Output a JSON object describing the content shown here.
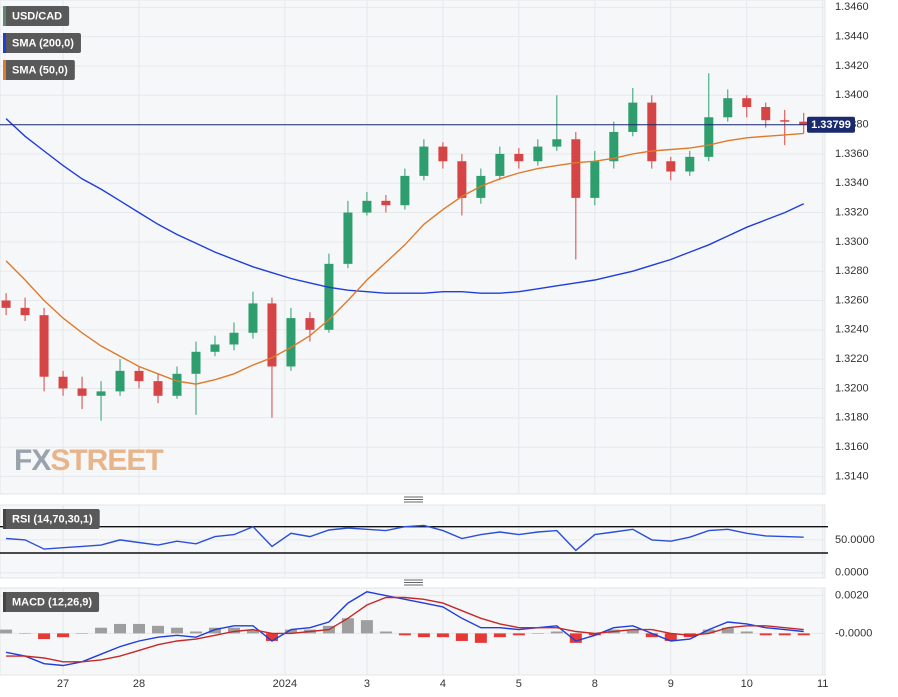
{
  "chart_data": [
    {
      "type": "candlestick",
      "x": [
        0.25,
        0.5,
        0.75,
        1,
        1.25,
        1.5,
        1.75,
        2,
        2.25,
        2.5,
        2.75,
        3,
        3.25,
        3.5,
        3.75,
        4,
        4.25,
        4.5,
        4.75,
        5,
        5.25,
        5.5,
        5.75,
        6,
        6.25,
        6.5,
        6.75,
        7,
        7.25,
        7.5,
        7.75,
        8,
        8.25,
        8.5,
        8.75,
        9,
        9.25,
        9.5,
        9.75,
        10,
        10.25,
        10.5,
        10.75
      ],
      "candles": {
        "name": "USD/CAD",
        "color": "#5f8a6c",
        "up_color": "#2e9e6e",
        "down_color": "#d64545",
        "open": [
          1.326,
          1.3255,
          1.325,
          1.3208,
          1.32,
          1.3195,
          1.3198,
          1.3212,
          1.3205,
          1.3195,
          1.321,
          1.3225,
          1.323,
          1.3238,
          1.3258,
          1.3215,
          1.3248,
          1.324,
          1.3285,
          1.332,
          1.3328,
          1.3325,
          1.3345,
          1.3365,
          1.3355,
          1.333,
          1.3345,
          1.336,
          1.3355,
          1.3365,
          1.337,
          1.333,
          1.3355,
          1.3375,
          1.3395,
          1.3355,
          1.3348,
          1.3358,
          1.3385,
          1.3398,
          1.3392,
          1.3383,
          1.3382
        ],
        "high": [
          1.3265,
          1.3262,
          1.3255,
          1.3212,
          1.3208,
          1.3205,
          1.322,
          1.3215,
          1.321,
          1.3215,
          1.3232,
          1.3236,
          1.3245,
          1.3266,
          1.3262,
          1.3255,
          1.3252,
          1.3292,
          1.3328,
          1.3334,
          1.3332,
          1.335,
          1.337,
          1.3368,
          1.336,
          1.335,
          1.3365,
          1.3364,
          1.337,
          1.34,
          1.3375,
          1.3362,
          1.3382,
          1.3405,
          1.34,
          1.3358,
          1.3362,
          1.3415,
          1.3404,
          1.34,
          1.3395,
          1.339,
          1.3388
        ],
        "low": [
          1.325,
          1.3246,
          1.3198,
          1.3195,
          1.3186,
          1.3178,
          1.3195,
          1.32,
          1.319,
          1.3193,
          1.3182,
          1.3222,
          1.3226,
          1.3234,
          1.318,
          1.3212,
          1.3232,
          1.3238,
          1.3282,
          1.3318,
          1.332,
          1.3322,
          1.3342,
          1.335,
          1.3318,
          1.3326,
          1.3342,
          1.335,
          1.3352,
          1.3362,
          1.3288,
          1.3325,
          1.335,
          1.3372,
          1.335,
          1.3342,
          1.3345,
          1.3355,
          1.3382,
          1.3385,
          1.3378,
          1.3366,
          1.3374
        ],
        "close": [
          1.3255,
          1.325,
          1.3208,
          1.32,
          1.3195,
          1.3198,
          1.3212,
          1.3205,
          1.3195,
          1.321,
          1.3225,
          1.323,
          1.3238,
          1.3258,
          1.3215,
          1.3248,
          1.324,
          1.3285,
          1.332,
          1.3328,
          1.3325,
          1.3345,
          1.3365,
          1.3355,
          1.333,
          1.3345,
          1.336,
          1.3355,
          1.3365,
          1.337,
          1.333,
          1.3355,
          1.3375,
          1.3395,
          1.3355,
          1.3348,
          1.3358,
          1.3385,
          1.3398,
          1.3392,
          1.3383,
          1.3382,
          1.338
        ]
      },
      "series": [
        {
          "name": "SMA (200,0)",
          "color": "#1f3ddb",
          "values": [
            1.3384,
            1.3372,
            1.3362,
            1.3352,
            1.3343,
            1.3336,
            1.3328,
            1.332,
            1.3312,
            1.3305,
            1.3299,
            1.3293,
            1.3288,
            1.3283,
            1.3279,
            1.3275,
            1.3272,
            1.3269,
            1.3267,
            1.3266,
            1.3265,
            1.3265,
            1.3265,
            1.3266,
            1.3266,
            1.3265,
            1.3265,
            1.3266,
            1.3268,
            1.327,
            1.3272,
            1.3274,
            1.3277,
            1.328,
            1.3284,
            1.3288,
            1.3293,
            1.3298,
            1.3304,
            1.331,
            1.3315,
            1.332,
            1.3326
          ]
        },
        {
          "name": "SMA (50,0)",
          "color": "#e07a2b",
          "values": [
            1.3287,
            1.3274,
            1.326,
            1.3248,
            1.3238,
            1.3229,
            1.3222,
            1.3215,
            1.321,
            1.3205,
            1.3203,
            1.3206,
            1.321,
            1.3216,
            1.3221,
            1.3228,
            1.3236,
            1.3247,
            1.326,
            1.3274,
            1.3286,
            1.3298,
            1.3312,
            1.3322,
            1.3331,
            1.3338,
            1.3343,
            1.3347,
            1.335,
            1.3352,
            1.3354,
            1.3355,
            1.3357,
            1.336,
            1.3362,
            1.3363,
            1.3364,
            1.3366,
            1.3369,
            1.3371,
            1.3372,
            1.3373,
            1.3374
          ]
        }
      ],
      "current": 1.33799,
      "current_color": "#1a2a6c",
      "xlim": [
        0.17,
        11.03
      ],
      "ylim": [
        1.3128,
        1.3465
      ],
      "yticks": [
        {
          "value": 1.314,
          "label": "1.3140"
        },
        {
          "value": 1.316,
          "label": "1.3160"
        },
        {
          "value": 1.318,
          "label": "1.3180"
        },
        {
          "value": 1.32,
          "label": "1.3200"
        },
        {
          "value": 1.322,
          "label": "1.3220"
        },
        {
          "value": 1.324,
          "label": "1.3240"
        },
        {
          "value": 1.326,
          "label": "1.3260"
        },
        {
          "value": 1.328,
          "label": "1.3280"
        },
        {
          "value": 1.33,
          "label": "1.3300"
        },
        {
          "value": 1.332,
          "label": "1.3320"
        },
        {
          "value": 1.334,
          "label": "1.3340"
        },
        {
          "value": 1.336,
          "label": "1.3360"
        },
        {
          "value": 1.338,
          "label": "1.3380"
        },
        {
          "value": 1.34,
          "label": "1.3400"
        },
        {
          "value": 1.342,
          "label": "1.3420"
        },
        {
          "value": 1.344,
          "label": "1.3440"
        },
        {
          "value": 1.346,
          "label": "1.3460"
        }
      ],
      "grid": true,
      "watermark": [
        "FX",
        "STREET"
      ]
    },
    {
      "type": "line",
      "title": "RSI (14,70,30,1)",
      "x": [
        0.25,
        0.5,
        0.75,
        1,
        1.25,
        1.5,
        1.75,
        2,
        2.25,
        2.5,
        2.75,
        3,
        3.25,
        3.5,
        3.75,
        4,
        4.25,
        4.5,
        4.75,
        5,
        5.25,
        5.5,
        5.75,
        6,
        6.25,
        6.5,
        6.75,
        7,
        7.25,
        7.5,
        7.75,
        8,
        8.25,
        8.5,
        8.75,
        9,
        9.25,
        9.5,
        9.75,
        10,
        10.25,
        10.5,
        10.75
      ],
      "series": [
        {
          "color": "#2b4fd8",
          "values": [
            52,
            50,
            36,
            38,
            40,
            42,
            50,
            46,
            42,
            48,
            44,
            55,
            58,
            70,
            40,
            60,
            55,
            65,
            68,
            66,
            64,
            70,
            72,
            64,
            52,
            58,
            62,
            58,
            62,
            64,
            34,
            58,
            62,
            66,
            50,
            48,
            54,
            64,
            66,
            60,
            56,
            55,
            54
          ]
        }
      ],
      "levels": [
        70,
        30
      ],
      "xlim": [
        0.17,
        11.03
      ],
      "ylim": [
        -8,
        103
      ],
      "yticks": [
        {
          "value": 0,
          "label": "0.0000"
        },
        {
          "value": 50,
          "label": "50.0000"
        }
      ],
      "grid": true
    },
    {
      "type": "line",
      "title": "MACD (12,26,9)",
      "x": [
        0.25,
        0.5,
        0.75,
        1,
        1.25,
        1.5,
        1.75,
        2,
        2.25,
        2.5,
        2.75,
        3,
        3.25,
        3.5,
        3.75,
        4,
        4.25,
        4.5,
        4.75,
        5,
        5.25,
        5.5,
        5.75,
        6,
        6.25,
        6.5,
        6.75,
        7,
        7.25,
        7.5,
        7.75,
        8,
        8.25,
        8.5,
        8.75,
        9,
        9.25,
        9.5,
        9.75,
        10,
        10.25,
        10.5,
        10.75
      ],
      "series": [
        {
          "type": "bar",
          "color": "#9e9e9e",
          "negative_color": "#e53935",
          "values": [
            0.0002,
            0,
            -0.0003,
            -0.0002,
            0,
            0.0003,
            0.0005,
            0.0005,
            0.0004,
            0.0003,
            0.0001,
            0.0003,
            0.0003,
            0.0002,
            -0.0004,
            0.0002,
            0.0002,
            0.0004,
            0.0008,
            0.0007,
            0.0001,
            -0.0001,
            -0.0002,
            -0.0002,
            -0.0004,
            -0.0005,
            -0.0002,
            -0.0001,
            0,
            0.0001,
            -0.0005,
            -0.0001,
            0.0002,
            0.0002,
            -0.0002,
            -0.0004,
            -0.0002,
            0.0002,
            0.0003,
            0.0001,
            -0.0001,
            -0.0001,
            -0.0001
          ]
        },
        {
          "color": "#1f3ddb",
          "values": [
            -0.001,
            -0.0012,
            -0.0016,
            -0.0017,
            -0.0015,
            -0.0011,
            -0.0007,
            -0.0004,
            -0.0002,
            -0.0001,
            -0.0002,
            0.0002,
            0.0004,
            0.0004,
            -0.0004,
            0.0002,
            0.0003,
            0.0006,
            0.0016,
            0.0022,
            0.002,
            0.0018,
            0.0016,
            0.0014,
            0.0008,
            0.0003,
            0.0003,
            0.0002,
            0.0003,
            0.0004,
            -0.0004,
            -0.0001,
            0.0003,
            0.0004,
            0.0,
            -0.0004,
            -0.0003,
            0.0002,
            0.0006,
            0.0005,
            0.0003,
            0.0002,
            0.0001
          ]
        },
        {
          "color": "#c62828",
          "values": [
            -0.0012,
            -0.0012,
            -0.0013,
            -0.0015,
            -0.0015,
            -0.0014,
            -0.0012,
            -0.0009,
            -0.0006,
            -0.0004,
            -0.0003,
            -0.0001,
            0.0001,
            0.0002,
            0.0,
            0.0,
            0.0001,
            0.0002,
            0.0008,
            0.0015,
            0.0019,
            0.0019,
            0.0018,
            0.0016,
            0.0012,
            0.0008,
            0.0005,
            0.0003,
            0.0003,
            0.0003,
            0.0001,
            0.0,
            0.0001,
            0.0002,
            0.0002,
            0.0,
            -0.0001,
            0.0,
            0.0003,
            0.0004,
            0.0004,
            0.0003,
            0.0002
          ]
        }
      ],
      "xlim": [
        0.17,
        11.03
      ],
      "ylim": [
        -0.0022,
        0.0024
      ],
      "yticks": [
        {
          "value": 0,
          "label": "-0.0000"
        },
        {
          "value": 0.002,
          "label": "0.0020"
        }
      ],
      "xticks": [
        {
          "value": 1,
          "label": "27"
        },
        {
          "value": 2,
          "label": "28"
        },
        {
          "value": 3.92,
          "label": "2024"
        },
        {
          "value": 5,
          "label": "3"
        },
        {
          "value": 6,
          "label": "4"
        },
        {
          "value": 7,
          "label": "5"
        },
        {
          "value": 8,
          "label": "8"
        },
        {
          "value": 9,
          "label": "9"
        },
        {
          "value": 10,
          "label": "10"
        },
        {
          "value": 11,
          "label": "11"
        }
      ],
      "grid": true
    }
  ]
}
